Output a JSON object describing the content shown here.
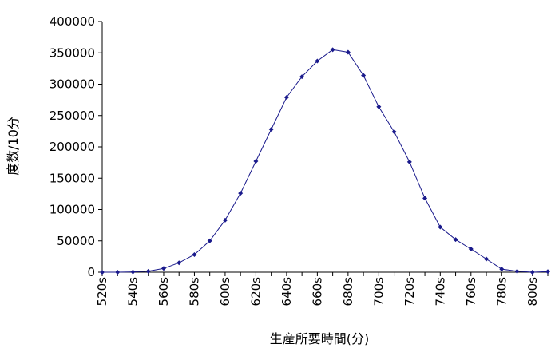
{
  "chart_data": {
    "type": "line",
    "title": "",
    "xlabel": "生産所要時間(分)",
    "ylabel": "度数/10分",
    "ylim": [
      0,
      400000
    ],
    "yticks": [
      "0",
      "50000",
      "100000",
      "150000",
      "200000",
      "250000",
      "300000",
      "350000",
      "400000"
    ],
    "xticks": [
      "520s",
      "540s",
      "560s",
      "580s",
      "600s",
      "620s",
      "640s",
      "660s",
      "680s",
      "700s",
      "720s",
      "740s",
      "760s",
      "780s",
      "800s"
    ],
    "grid": false,
    "legend": "none",
    "series": [
      {
        "color": "#1a1a8c",
        "marker": "diamond",
        "x": [
          520,
          530,
          540,
          550,
          560,
          570,
          580,
          590,
          600,
          610,
          620,
          630,
          640,
          650,
          660,
          670,
          680,
          690,
          700,
          710,
          720,
          730,
          740,
          750,
          760,
          770,
          780,
          790,
          800,
          810
        ],
        "values": [
          0,
          0,
          500,
          1500,
          6000,
          15000,
          28000,
          50000,
          83000,
          126000,
          177000,
          228000,
          279000,
          312000,
          337000,
          355000,
          351000,
          314000,
          264000,
          224000,
          176000,
          118000,
          72000,
          52000,
          37000,
          21000,
          5000,
          1500,
          0,
          1000
        ]
      }
    ]
  }
}
